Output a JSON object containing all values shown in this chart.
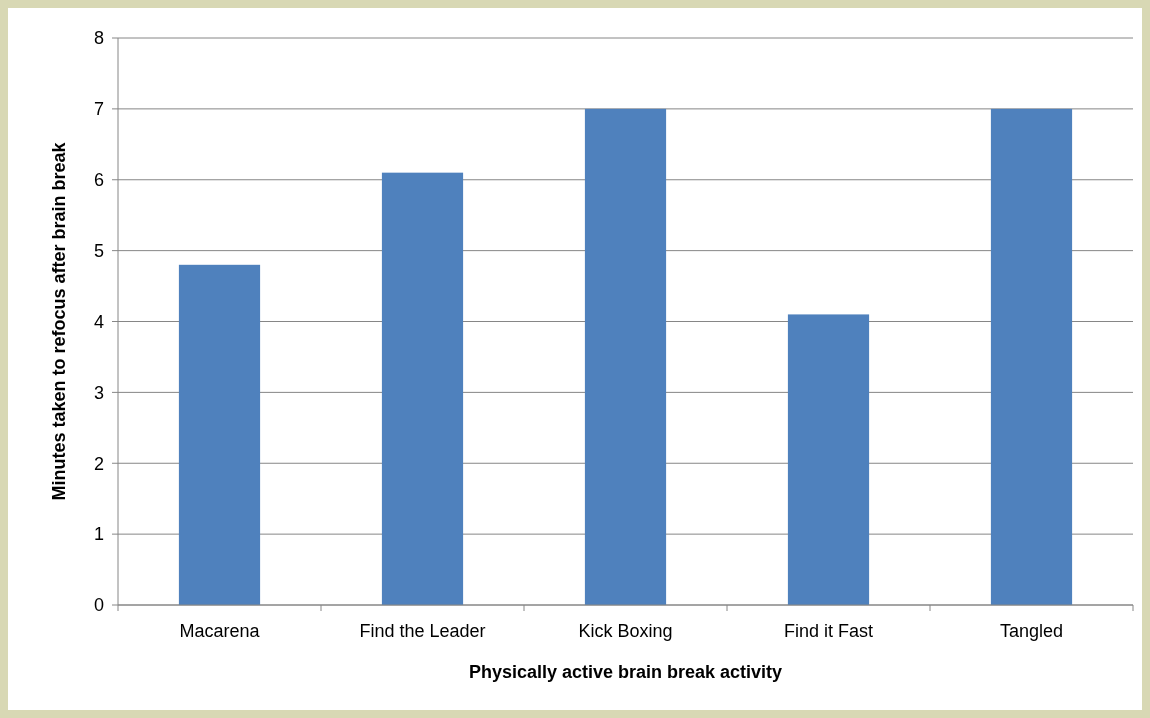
{
  "chart_data": {
    "type": "bar",
    "xlabel": "Physically active brain break activity",
    "ylabel": "Minutes taken to refocus after brain break",
    "categories": [
      "Macarena",
      "Find the Leader",
      "Kick Boxing",
      "Find it Fast",
      "Tangled"
    ],
    "values": [
      4.8,
      6.1,
      7,
      4.1,
      7
    ],
    "color": "#4f81bd",
    "ylim": [
      0,
      8
    ],
    "yticks": [
      0,
      1,
      2,
      3,
      4,
      5,
      6,
      7,
      8
    ],
    "grid": "y"
  }
}
